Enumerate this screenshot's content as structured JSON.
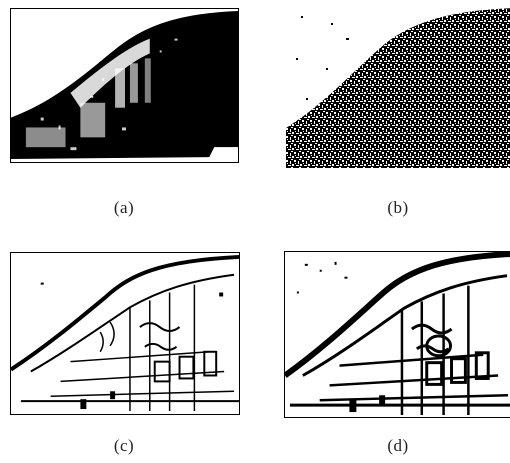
{
  "figure": {
    "panels": [
      {
        "id": "a",
        "caption": "(a)",
        "description_icon": "binary-threshold-image"
      },
      {
        "id": "b",
        "caption": "(b)",
        "description_icon": "noisy-edge-map-image"
      },
      {
        "id": "c",
        "caption": "(c)",
        "description_icon": "edge-map-image"
      },
      {
        "id": "d",
        "caption": "(d)",
        "description_icon": "edge-map-image"
      }
    ]
  },
  "colors": {
    "ink": "#000000",
    "paper": "#ffffff",
    "caption": "#222222"
  }
}
